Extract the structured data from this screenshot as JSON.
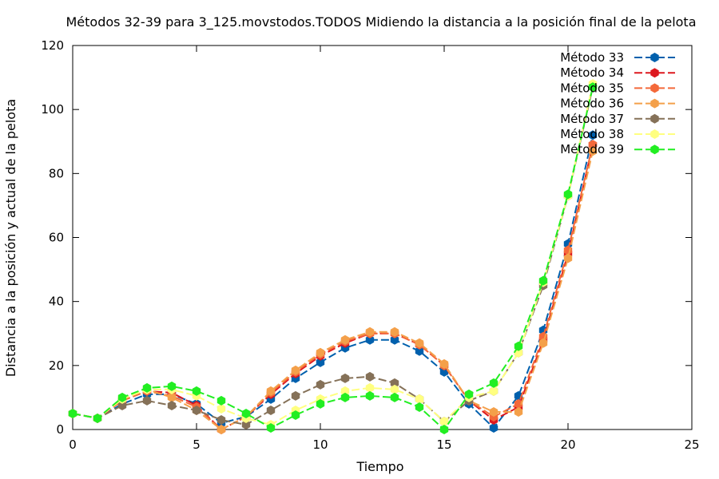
{
  "chart_data": {
    "type": "line",
    "title": "Métodos 32-39 para 3_125.movstodos.TODOS Midiendo la distancia a la posición final de la pelota",
    "xlabel": "Tiempo",
    "ylabel": "Distancia a la posición y actual de la pelota",
    "xlim": [
      0,
      25
    ],
    "ylim": [
      0,
      120
    ],
    "xticks": [
      0,
      5,
      10,
      15,
      20,
      25
    ],
    "yticks": [
      0,
      20,
      40,
      60,
      80,
      100,
      120
    ],
    "grid": false,
    "legend_position": "top-right",
    "x": [
      0,
      1,
      2,
      3,
      4,
      5,
      6,
      7,
      8,
      9,
      10,
      11,
      12,
      13,
      14,
      15,
      16,
      17,
      18,
      19,
      20,
      21
    ],
    "series": [
      {
        "name": "Método 33",
        "color": "#0060ad",
        "values": [
          5,
          3.5,
          8,
          11,
          11,
          8,
          2,
          4,
          9.5,
          16,
          21,
          25.5,
          28,
          28,
          24.5,
          18,
          8,
          0.5,
          10.5,
          31,
          58,
          92
        ]
      },
      {
        "name": "Método 34",
        "color": "#dd181f",
        "values": [
          5,
          3.5,
          9,
          12,
          11.5,
          7.5,
          0,
          4,
          11,
          17.5,
          23,
          27,
          30,
          30,
          26.5,
          20,
          9,
          3,
          7,
          28,
          55,
          89
        ]
      },
      {
        "name": "Método 35",
        "color": "#f4693a",
        "values": [
          5,
          3.5,
          9,
          12,
          10.5,
          7,
          0,
          4,
          11.5,
          18,
          23.5,
          27.5,
          30,
          30,
          26.5,
          20,
          9,
          4,
          8,
          29,
          56,
          89
        ]
      },
      {
        "name": "Método 36",
        "color": "#f4a04a",
        "values": [
          5,
          3.5,
          9.5,
          12.5,
          10,
          6,
          0,
          4,
          12,
          18.5,
          24,
          28,
          30.5,
          30.5,
          27,
          20.5,
          9,
          5.5,
          5.5,
          27,
          53.5,
          87
        ]
      },
      {
        "name": "Método 37",
        "color": "#857158",
        "values": [
          5,
          3.5,
          7.5,
          9,
          7.5,
          6,
          3,
          1.5,
          6,
          10.5,
          14,
          16,
          16.5,
          14.5,
          9.5,
          2.5,
          9,
          12,
          24,
          45,
          73,
          107
        ]
      },
      {
        "name": "Método 38",
        "color": "#ffff80",
        "values": [
          5,
          3.5,
          9.5,
          12.5,
          12.5,
          10.5,
          6.5,
          3.5,
          1.5,
          6,
          9.5,
          12,
          13,
          12.5,
          9.5,
          2.5,
          10,
          12,
          24,
          46,
          73,
          108
        ]
      },
      {
        "name": "Método 39",
        "color": "#22ee22",
        "values": [
          5,
          3.5,
          10,
          13,
          13.5,
          12,
          9,
          5,
          0.5,
          4.5,
          8,
          10,
          10.5,
          10,
          7,
          0,
          11,
          14.5,
          26,
          46.5,
          73.5,
          107
        ]
      }
    ]
  }
}
